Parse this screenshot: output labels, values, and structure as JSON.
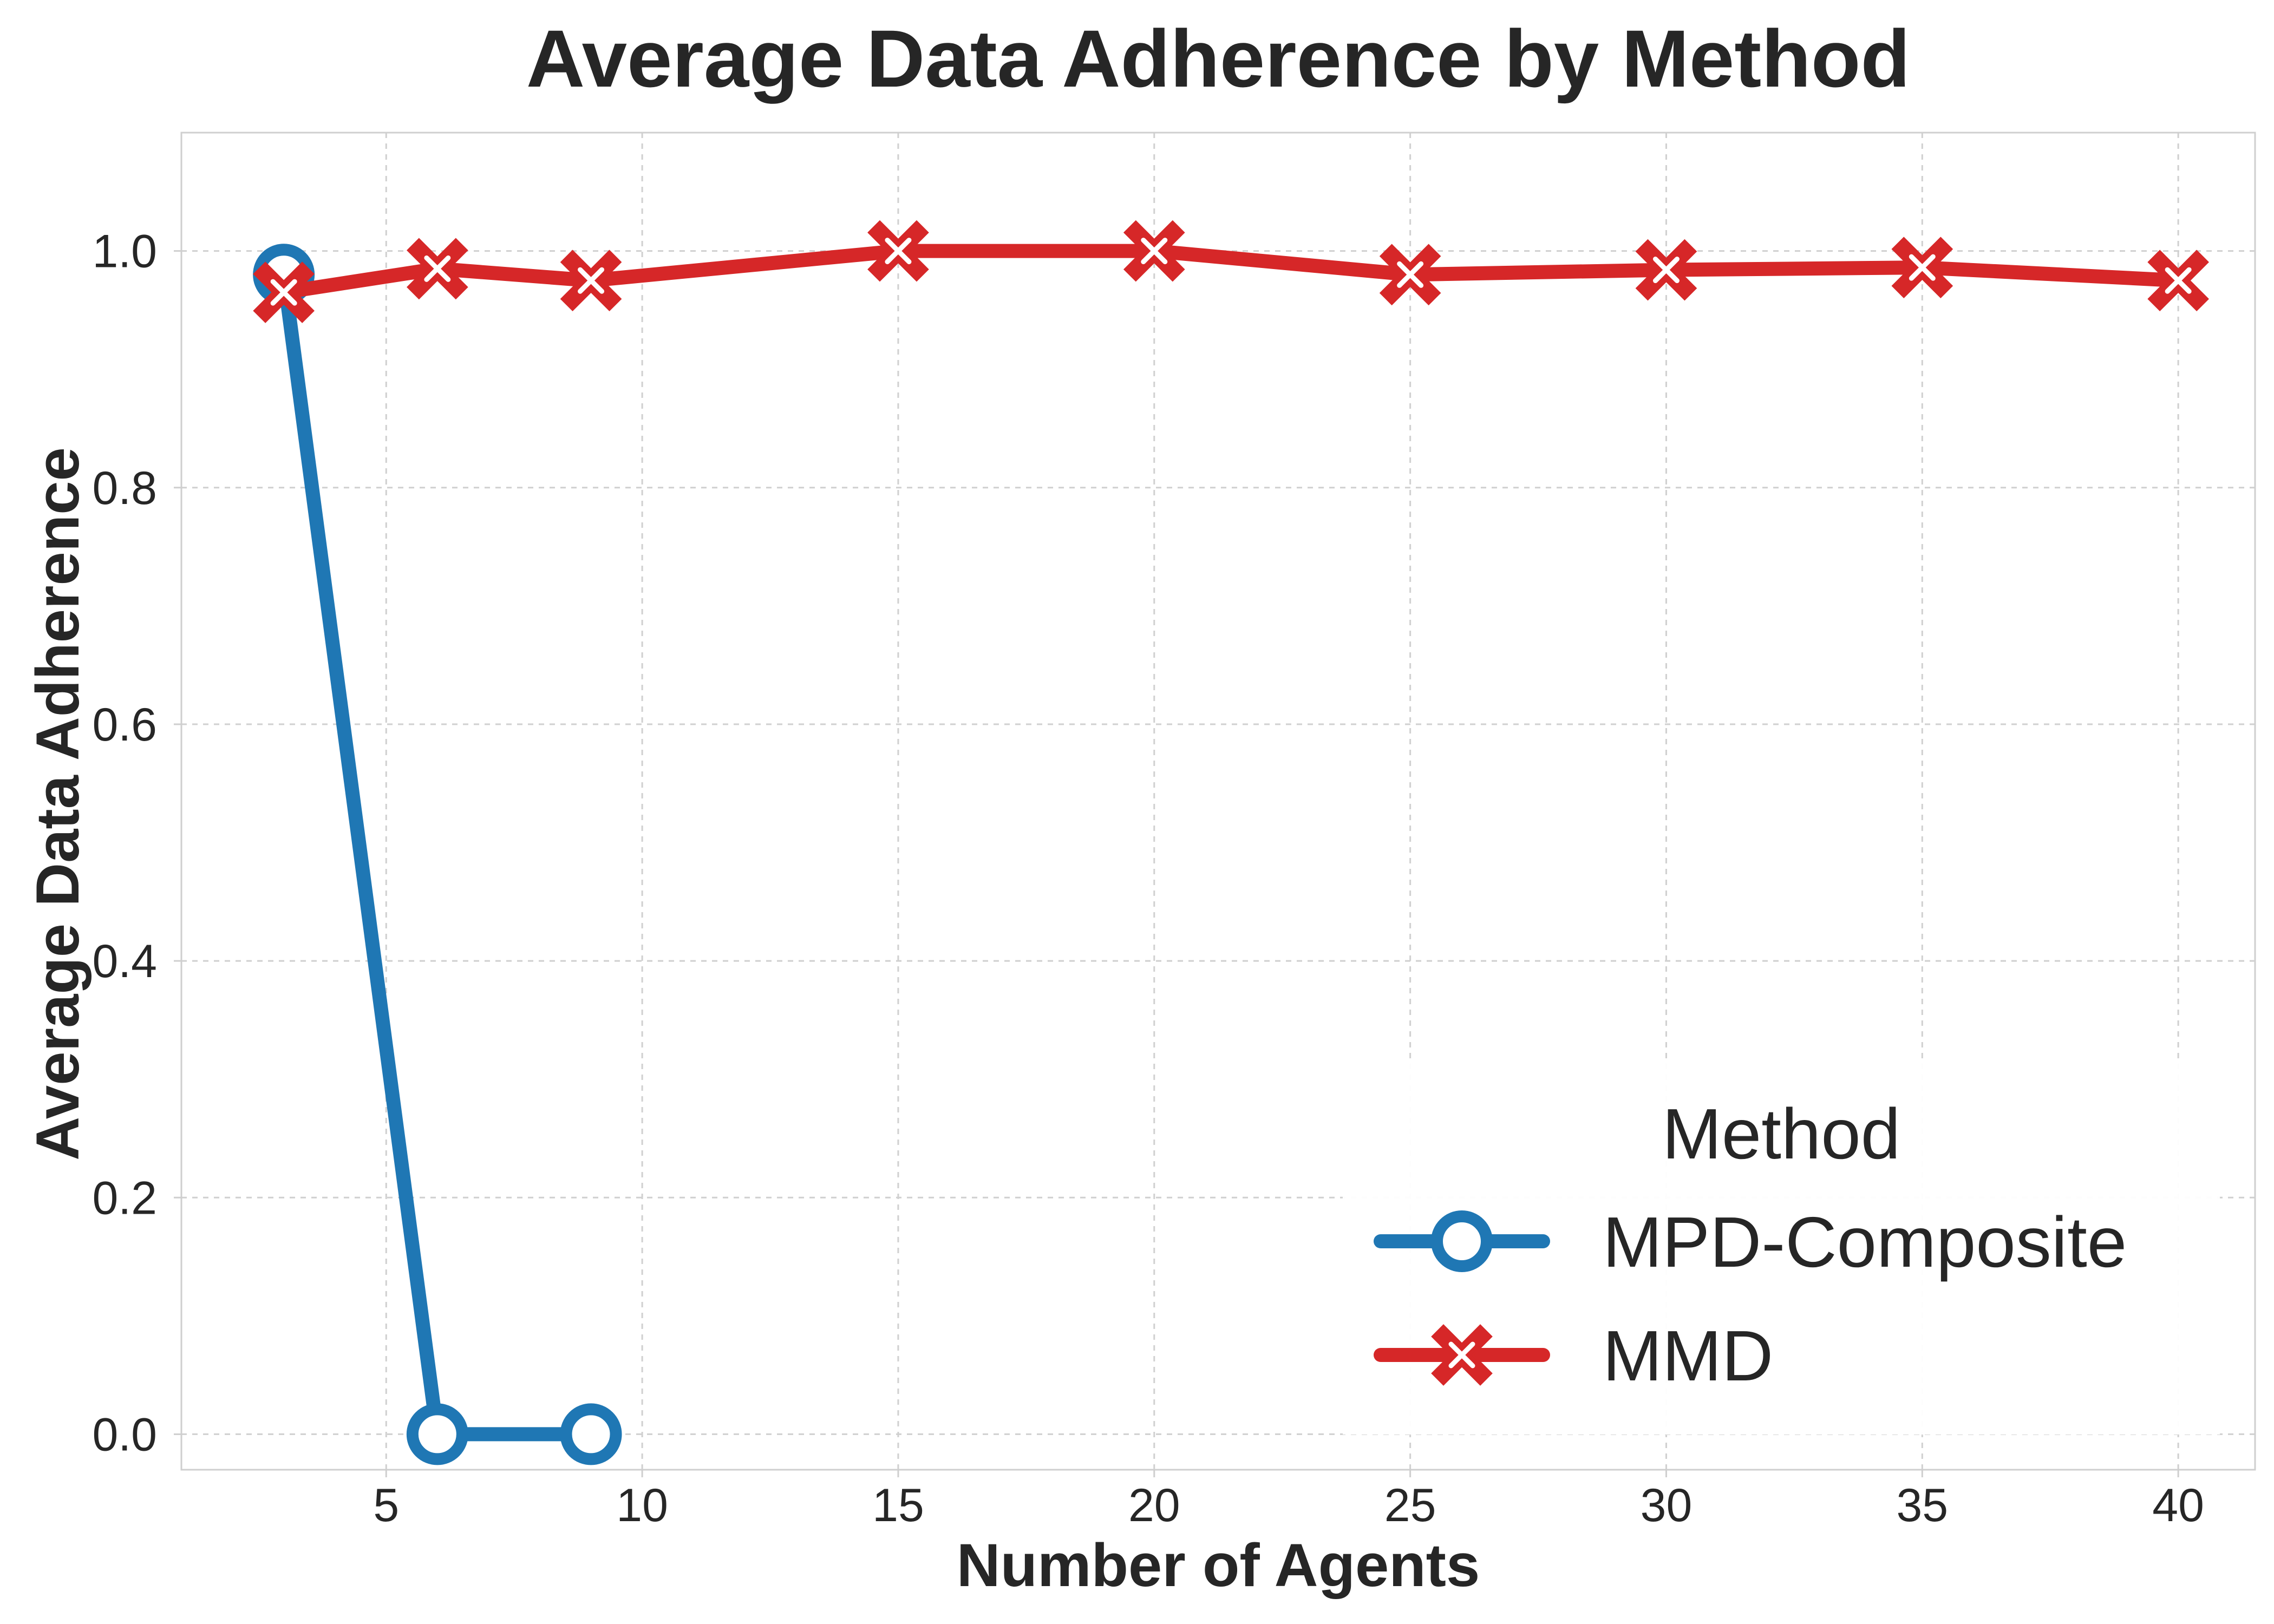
{
  "chart_data": {
    "type": "line",
    "title": "Average Data Adherence by Method",
    "xlabel": "Number of Agents",
    "ylabel": "Average Data Adherence",
    "xlim": [
      1.0,
      41.5
    ],
    "ylim": [
      -0.03,
      1.1
    ],
    "xticks": [
      5,
      10,
      15,
      20,
      25,
      30,
      35,
      40
    ],
    "yticks": [
      0.0,
      0.2,
      0.4,
      0.6,
      0.8,
      1.0
    ],
    "ytick_labels": [
      "0.0",
      "0.2",
      "0.4",
      "0.6",
      "0.8",
      "1.0"
    ],
    "grid": true,
    "legend": {
      "title": "Method",
      "position": "lower-right"
    },
    "series": [
      {
        "name": "MPD-Composite",
        "color": "#1f77b4",
        "marker": "open-circle",
        "x": [
          3,
          6,
          9
        ],
        "y": [
          0.98,
          0.0,
          0.0
        ]
      },
      {
        "name": "MMD",
        "color": "#d62728",
        "marker": "filled-x",
        "x": [
          3,
          6,
          9,
          15,
          20,
          25,
          30,
          35,
          40
        ],
        "y": [
          0.965,
          0.985,
          0.975,
          1.0,
          1.0,
          0.98,
          0.984,
          0.986,
          0.975
        ]
      }
    ]
  }
}
